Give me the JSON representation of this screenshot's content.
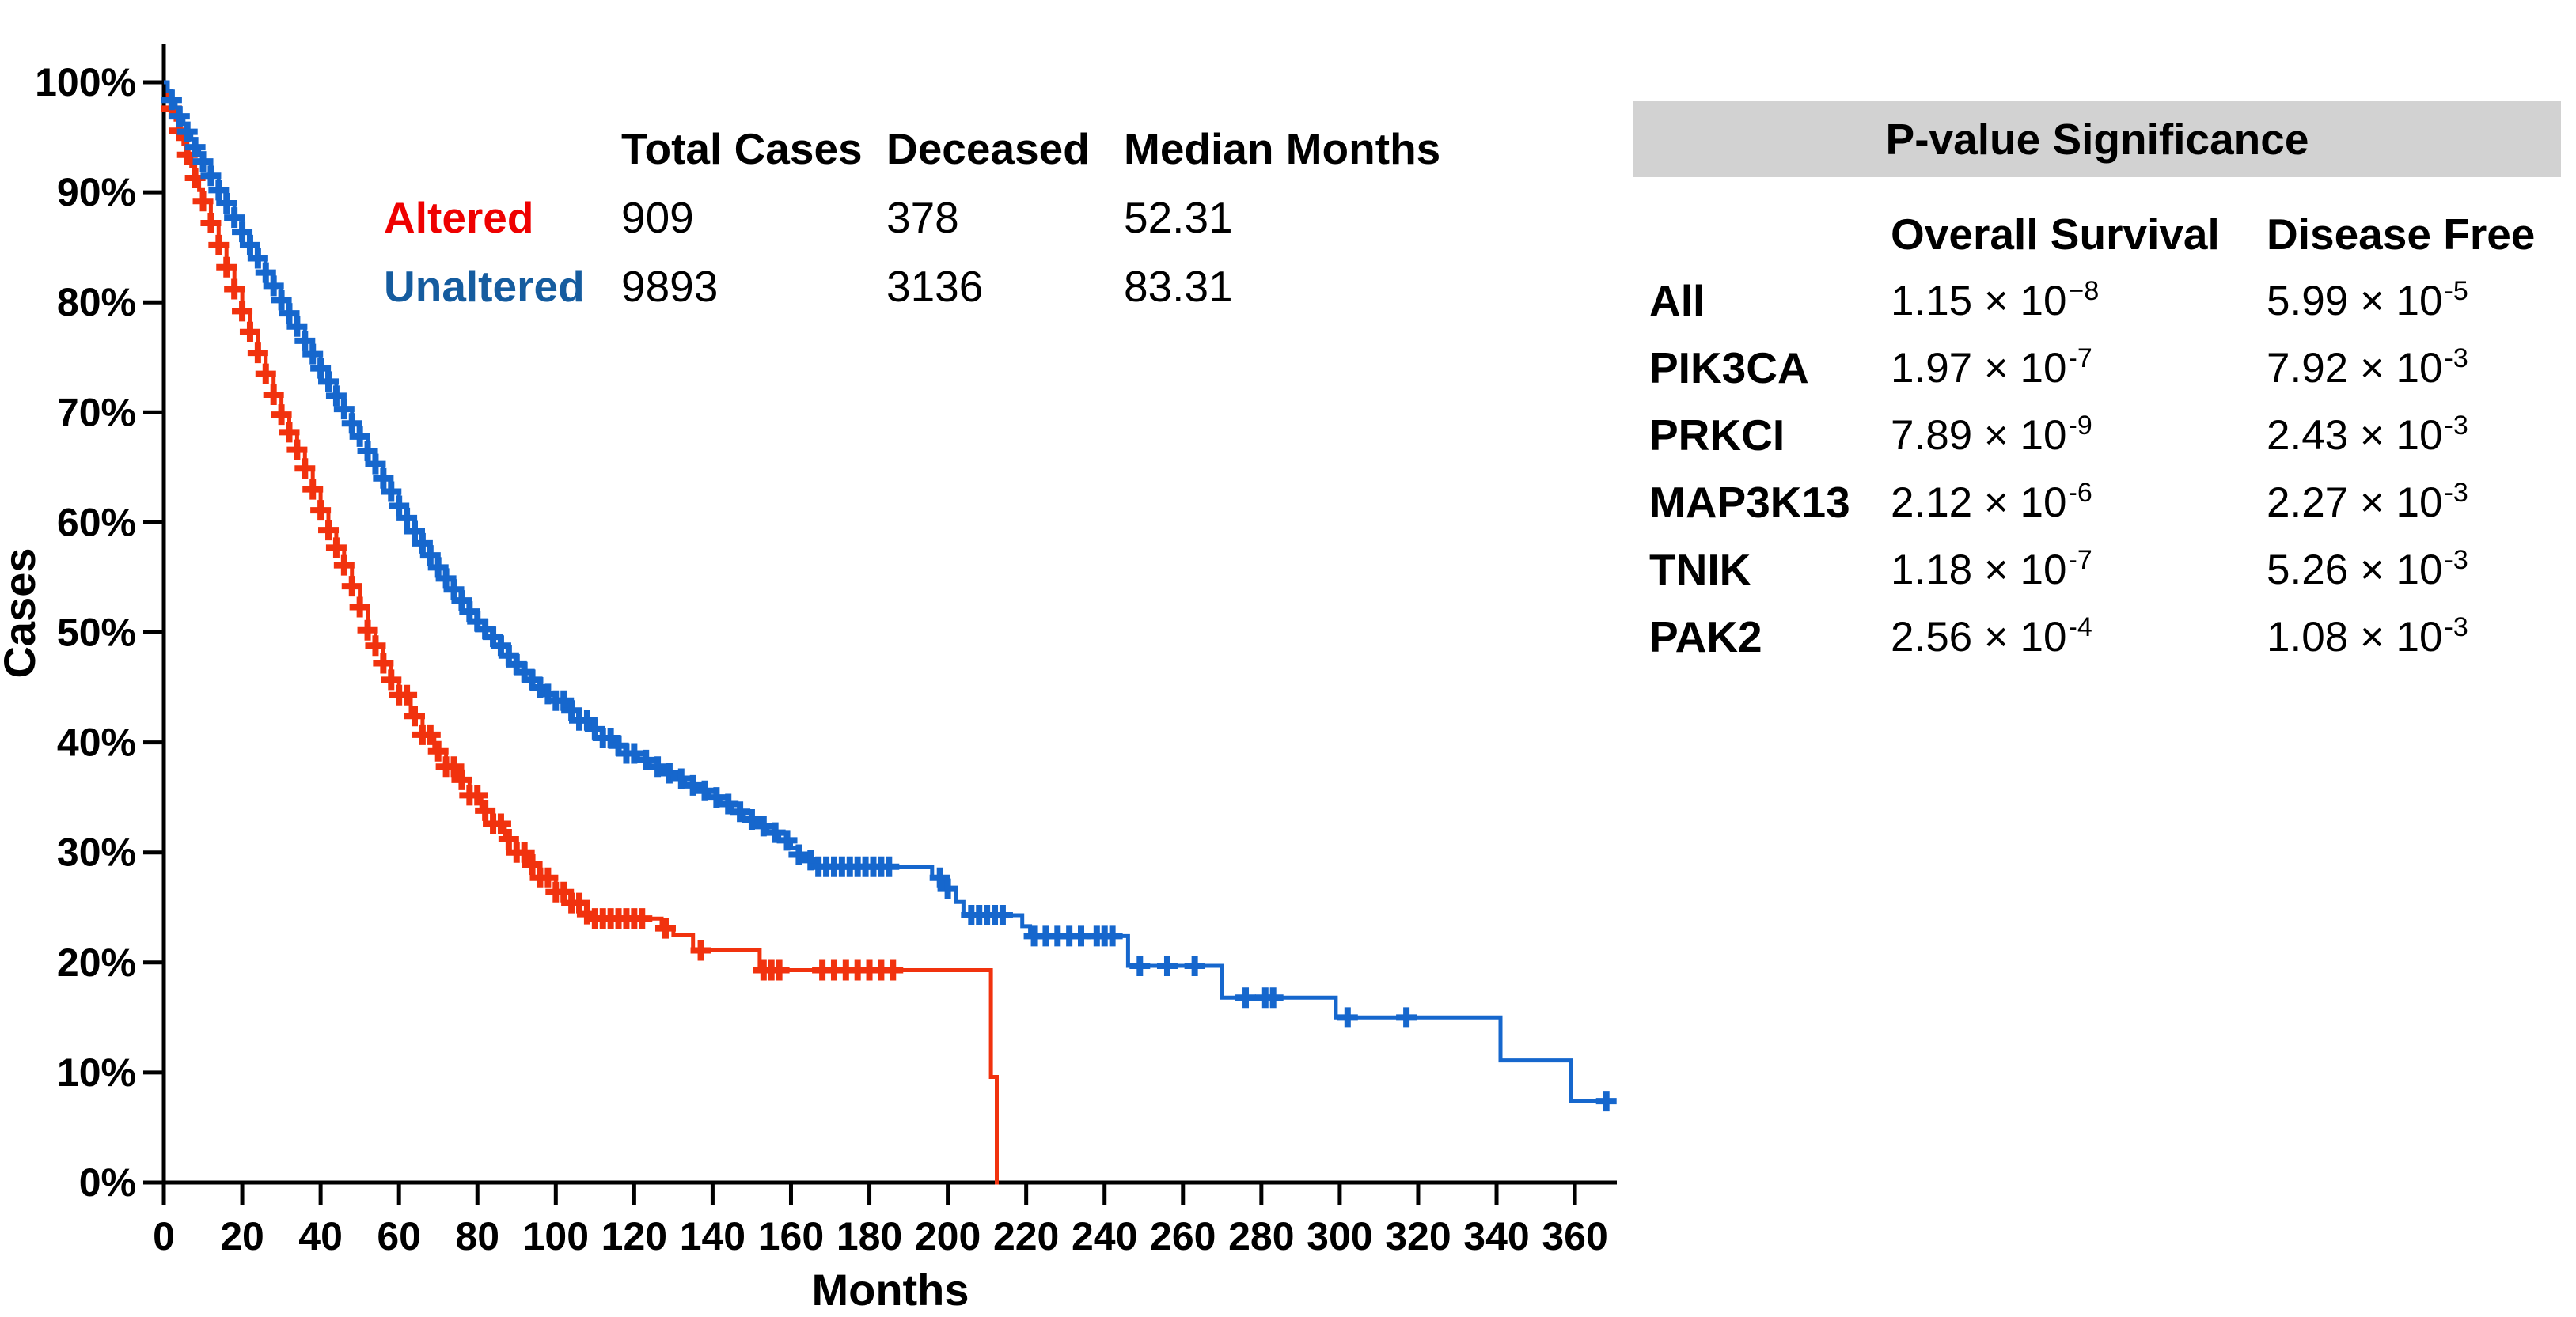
{
  "accent_colors": {
    "altered_curve": "#f1320e",
    "altered_label": "#ee0000",
    "unaltered_curve": "#1667cd",
    "unaltered_label": "#155c9f",
    "table_header_bg": "#d2d2d2",
    "axis_color": "#000000"
  },
  "legend_table": {
    "headers": {
      "total": "Total Cases",
      "deceased": "Deceased",
      "median": "Median Months"
    },
    "rows": [
      {
        "label": "Altered",
        "total": "909",
        "deceased": "378",
        "median": "52.31",
        "color": "#ee0000"
      },
      {
        "label": "Unaltered",
        "total": "9893",
        "deceased": "3136",
        "median": "83.31",
        "color": "#155c9f"
      }
    ]
  },
  "pvalue_table": {
    "title": "P-value Significance",
    "columns": {
      "os": "Overall Survival",
      "df": "Disease Free"
    },
    "rows": [
      {
        "gene": "All",
        "os_base": "1.15 × 10",
        "os_exp": "−8",
        "df_base": "5.99 × 10",
        "df_exp": "-5"
      },
      {
        "gene": "PIK3CA",
        "os_base": "1.97 × 10",
        "os_exp": "-7",
        "df_base": "7.92 × 10",
        "df_exp": "-3"
      },
      {
        "gene": "PRKCI",
        "os_base": "7.89 × 10",
        "os_exp": "-9",
        "df_base": "2.43 × 10",
        "df_exp": "-3"
      },
      {
        "gene": "MAP3K13",
        "os_base": "2.12 × 10",
        "os_exp": "-6",
        "df_base": "2.27 × 10",
        "df_exp": "-3"
      },
      {
        "gene": "TNIK",
        "os_base": "1.18 × 10",
        "os_exp": "-7",
        "df_base": "5.26 × 10",
        "df_exp": "-3"
      },
      {
        "gene": "PAK2",
        "os_base": "2.56 × 10",
        "os_exp": "-4",
        "df_base": "1.08 × 10",
        "df_exp": "-3"
      }
    ]
  },
  "chart_data": {
    "type": "line",
    "subtype": "kaplan-meier-step",
    "title": "",
    "xlabel": "Months",
    "ylabel": "Cases",
    "xlim": [
      0,
      371
    ],
    "ylim": [
      0,
      100
    ],
    "x_ticks": [
      0,
      20,
      40,
      60,
      80,
      100,
      120,
      140,
      160,
      180,
      200,
      220,
      240,
      260,
      280,
      300,
      320,
      340,
      360
    ],
    "y_ticks": [
      0,
      10,
      20,
      30,
      40,
      50,
      60,
      70,
      80,
      90,
      100
    ],
    "y_tick_suffix": "%",
    "grid": false,
    "legend_position": "top-inset-table",
    "series": [
      {
        "name": "Altered",
        "color": "#f1320e",
        "total_cases": 909,
        "deceased": 378,
        "median_months": 52.31,
        "points": [
          [
            0,
            100
          ],
          [
            1,
            98.7
          ],
          [
            2,
            97.6
          ],
          [
            3,
            96.6
          ],
          [
            4,
            95.6
          ],
          [
            5,
            94.4
          ],
          [
            6,
            93.4
          ],
          [
            7,
            92.4
          ],
          [
            8,
            91.3
          ],
          [
            9,
            90.2
          ],
          [
            10,
            89.2
          ],
          [
            12,
            87.2
          ],
          [
            14,
            85.2
          ],
          [
            16,
            83.2
          ],
          [
            18,
            81.2
          ],
          [
            20,
            79.2
          ],
          [
            22,
            77.3
          ],
          [
            24,
            75.4
          ],
          [
            26,
            73.5
          ],
          [
            28,
            71.6
          ],
          [
            30,
            69.8
          ],
          [
            32,
            68.2
          ],
          [
            34,
            66.6
          ],
          [
            36,
            64.9
          ],
          [
            38,
            63
          ],
          [
            40,
            61.1
          ],
          [
            42,
            59.3
          ],
          [
            44,
            57.7
          ],
          [
            46,
            56.1
          ],
          [
            48,
            54.2
          ],
          [
            50,
            52.3
          ],
          [
            52,
            50.2
          ],
          [
            54,
            48.8
          ],
          [
            56,
            47.2
          ],
          [
            58,
            45.7
          ],
          [
            60,
            44.3
          ],
          [
            63,
            42.4
          ],
          [
            66,
            40.7
          ],
          [
            69,
            39.2
          ],
          [
            72,
            37.8
          ],
          [
            75,
            36.6
          ],
          [
            78,
            35.2
          ],
          [
            81,
            33.8
          ],
          [
            84,
            32.6
          ],
          [
            87,
            31.2
          ],
          [
            90,
            30
          ],
          [
            93,
            28.9
          ],
          [
            96,
            27.7
          ],
          [
            100,
            26.4
          ],
          [
            104,
            25.4
          ],
          [
            108,
            24.4
          ],
          [
            110,
            24
          ],
          [
            127,
            23.1
          ],
          [
            130,
            22.5
          ],
          [
            135,
            21.1
          ],
          [
            152,
            19.3
          ],
          [
            211,
            9.6
          ],
          [
            212.5,
            0
          ],
          [
            213,
            0
          ]
        ],
        "censor_months": [
          2,
          4,
          6,
          8,
          10,
          12,
          14,
          16,
          18,
          20,
          22,
          24,
          26,
          28,
          30,
          32,
          34,
          36,
          38,
          40,
          42,
          44,
          46,
          48,
          50,
          52,
          54,
          56,
          58,
          60,
          62,
          64,
          66,
          68,
          70,
          72,
          74,
          76,
          78,
          80,
          82,
          84,
          86,
          88,
          90,
          92,
          94,
          96,
          98,
          100,
          102,
          104,
          106,
          108,
          110,
          112,
          114,
          116,
          118,
          120,
          122,
          128,
          137,
          153,
          155,
          157,
          168,
          171,
          174,
          177,
          180,
          183,
          186
        ]
      },
      {
        "name": "Unaltered",
        "color": "#1667cd",
        "total_cases": 9893,
        "deceased": 3136,
        "median_months": 83.31,
        "points": [
          [
            0,
            100
          ],
          [
            1,
            99.2
          ],
          [
            2,
            98.4
          ],
          [
            3,
            97.7
          ],
          [
            4,
            96.9
          ],
          [
            5,
            96.2
          ],
          [
            6,
            95.5
          ],
          [
            7,
            94.8
          ],
          [
            8,
            94.1
          ],
          [
            9,
            93.4
          ],
          [
            10,
            92.8
          ],
          [
            12,
            91.5
          ],
          [
            14,
            90.2
          ],
          [
            16,
            89
          ],
          [
            18,
            87.7
          ],
          [
            20,
            86.4
          ],
          [
            22,
            85.2
          ],
          [
            24,
            84
          ],
          [
            26,
            82.7
          ],
          [
            28,
            81.5
          ],
          [
            30,
            80.2
          ],
          [
            32,
            79
          ],
          [
            34,
            77.8
          ],
          [
            36,
            76.5
          ],
          [
            38,
            75.3
          ],
          [
            40,
            74
          ],
          [
            42,
            72.8
          ],
          [
            44,
            71.5
          ],
          [
            46,
            70.3
          ],
          [
            48,
            69
          ],
          [
            50,
            67.8
          ],
          [
            52,
            66.5
          ],
          [
            54,
            65.3
          ],
          [
            56,
            64
          ],
          [
            58,
            62.8
          ],
          [
            60,
            61.5
          ],
          [
            62,
            60.4
          ],
          [
            64,
            59.2
          ],
          [
            66,
            58.1
          ],
          [
            68,
            57
          ],
          [
            70,
            55.9
          ],
          [
            72,
            54.9
          ],
          [
            74,
            53.9
          ],
          [
            76,
            52.9
          ],
          [
            78,
            51.9
          ],
          [
            80,
            51
          ],
          [
            82,
            50.3
          ],
          [
            84,
            49.6
          ],
          [
            86,
            48.8
          ],
          [
            88,
            47.9
          ],
          [
            90,
            47.1
          ],
          [
            92,
            46.4
          ],
          [
            94,
            45.7
          ],
          [
            96,
            45
          ],
          [
            98,
            44.4
          ],
          [
            100,
            43.8
          ],
          [
            103,
            42.9
          ],
          [
            106,
            42
          ],
          [
            109,
            41.2
          ],
          [
            112,
            40.4
          ],
          [
            115,
            39.7
          ],
          [
            118,
            39
          ],
          [
            121,
            38.4
          ],
          [
            124,
            37.8
          ],
          [
            127,
            37.2
          ],
          [
            130,
            36.7
          ],
          [
            133,
            36.1
          ],
          [
            136,
            35.6
          ],
          [
            139,
            35
          ],
          [
            142,
            34.4
          ],
          [
            145,
            33.7
          ],
          [
            148,
            33
          ],
          [
            151,
            32.4
          ],
          [
            154,
            31.8
          ],
          [
            157,
            31.1
          ],
          [
            160,
            30.4
          ],
          [
            162,
            29.8
          ],
          [
            164,
            29.3
          ],
          [
            166,
            28.7
          ],
          [
            196,
            27.7
          ],
          [
            199,
            26.7
          ],
          [
            202,
            25.5
          ],
          [
            204,
            24.3
          ],
          [
            219,
            23.3
          ],
          [
            221,
            22.4
          ],
          [
            246,
            19.7
          ],
          [
            270,
            16.8
          ],
          [
            299,
            15
          ],
          [
            341,
            11.1
          ],
          [
            359,
            7.4
          ],
          [
            368,
            7.4
          ]
        ],
        "censor_months": [
          2,
          4,
          6,
          8,
          10,
          12,
          14,
          16,
          18,
          20,
          22,
          24,
          26,
          28,
          30,
          32,
          34,
          36,
          38,
          40,
          42,
          44,
          46,
          48,
          50,
          52,
          54,
          56,
          58,
          60,
          62,
          64,
          66,
          68,
          70,
          72,
          74,
          76,
          78,
          80,
          82,
          84,
          86,
          88,
          90,
          92,
          94,
          96,
          98,
          100,
          102,
          104,
          106,
          108,
          110,
          112,
          114,
          116,
          118,
          120,
          123,
          126,
          129,
          132,
          135,
          138,
          141,
          144,
          147,
          150,
          153,
          156,
          159,
          162,
          165,
          167,
          169,
          171,
          173,
          175,
          177,
          179,
          181,
          183,
          185,
          198,
          200,
          206,
          208,
          210,
          212,
          214,
          222,
          225,
          228,
          231,
          234,
          238,
          240,
          242,
          249,
          256,
          263,
          276,
          281,
          283,
          302,
          317,
          368
        ]
      }
    ]
  }
}
